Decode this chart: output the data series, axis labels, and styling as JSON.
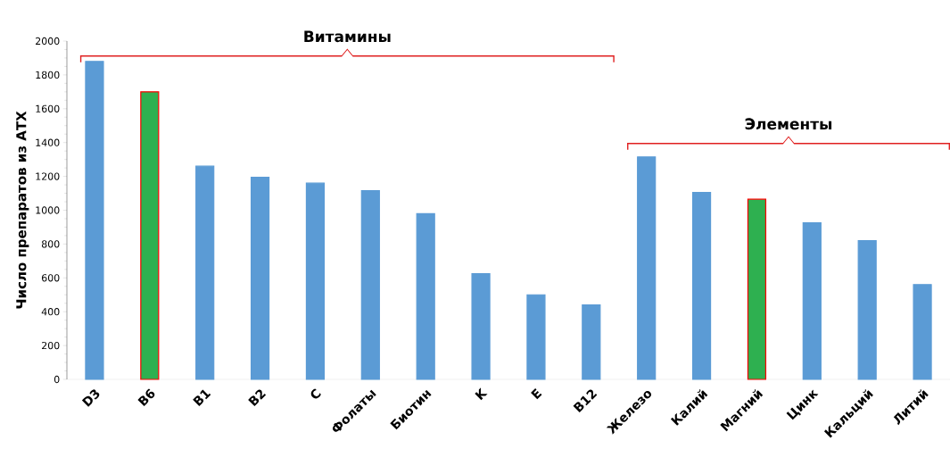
{
  "chart_data": {
    "type": "bar",
    "ylabel": "Число препаратов из АТХ",
    "categories": [
      "D3",
      "B6",
      "B1",
      "B2",
      "C",
      "Фолаты",
      "Биотин",
      "K",
      "E",
      "B12",
      "Железо",
      "Калий",
      "Магний",
      "Цинк",
      "Кальций",
      "Литий"
    ],
    "values": [
      1880,
      1700,
      1260,
      1195,
      1160,
      1115,
      980,
      625,
      500,
      440,
      1315,
      1105,
      1065,
      925,
      820,
      560
    ],
    "colors": [
      "#5b9bd5",
      "#2eb050",
      "#5b9bd5",
      "#5b9bd5",
      "#5b9bd5",
      "#5b9bd5",
      "#5b9bd5",
      "#5b9bd5",
      "#5b9bd5",
      "#5b9bd5",
      "#5b9bd5",
      "#5b9bd5",
      "#2eb050",
      "#5b9bd5",
      "#5b9bd5",
      "#5b9bd5"
    ],
    "ylim": [
      0,
      2000
    ],
    "yticks": [
      0,
      200,
      400,
      600,
      800,
      1000,
      1200,
      1400,
      1600,
      1800,
      2000
    ],
    "annotations": [
      "Витамины",
      "Элементы"
    ]
  }
}
